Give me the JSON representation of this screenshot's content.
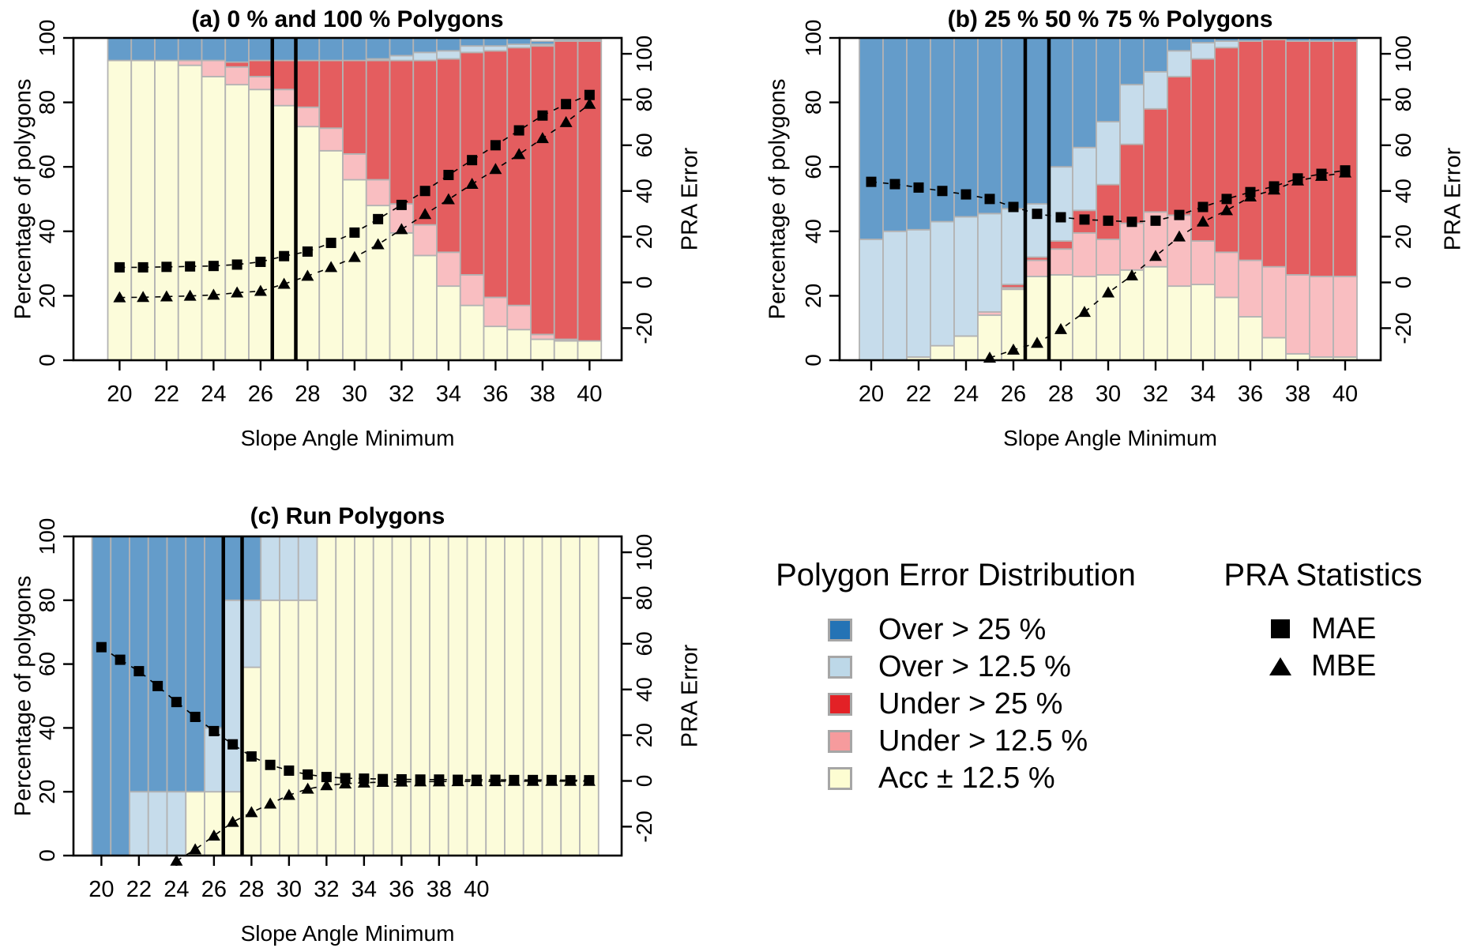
{
  "page": {
    "background": "#ffffff"
  },
  "colors": {
    "bar_fill": {
      "acc": "#FCFCDA",
      "under12_5": "#F9BEC1",
      "under25": "#E45D5F",
      "over12_5": "#C6DCEB",
      "over25": "#649CCA"
    },
    "bar_border": "#B3B3B3",
    "axis": "#000000",
    "marker": "#000000",
    "vline": "#000000"
  },
  "chart_data": [
    {
      "id": "a",
      "type": "bar",
      "title": "(a) 0 % and 100 % Polygons",
      "xlabel": "Slope Angle Minimum",
      "ylabel_left": "Percentage of polygons",
      "ylabel_right": "PRA Error",
      "x": [
        20,
        21,
        22,
        23,
        24,
        25,
        26,
        27,
        28,
        29,
        30,
        31,
        32,
        33,
        34,
        35,
        36,
        37,
        38,
        39,
        40
      ],
      "x_ticks": [
        20,
        22,
        24,
        26,
        28,
        30,
        32,
        34,
        36,
        38,
        40
      ],
      "left_ticks": [
        0,
        20,
        40,
        60,
        80,
        100
      ],
      "right_ticks": [
        -20,
        0,
        20,
        40,
        60,
        80,
        100
      ],
      "ylim_left": [
        0,
        100
      ],
      "ylim_right": [
        -35,
        105
      ],
      "vlines": [
        26.5,
        27.5
      ],
      "series": [
        {
          "key": "acc",
          "name": "Acc ± 12.5 %",
          "values": [
            93,
            93,
            93,
            91.5,
            88,
            85.5,
            84,
            79,
            72.5,
            65,
            56,
            48,
            39.5,
            32.5,
            23,
            17,
            10.5,
            9.5,
            6.5,
            6,
            6
          ]
        },
        {
          "key": "under12_5",
          "name": "Under > 12.5 %",
          "values": [
            0,
            0,
            0,
            1.5,
            5,
            5.5,
            4,
            5,
            6,
            7,
            8,
            8,
            9,
            9.5,
            10.5,
            9.5,
            9,
            7.5,
            1.5,
            0.5,
            0
          ]
        },
        {
          "key": "under25",
          "name": "Under > 25 %",
          "values": [
            0,
            0,
            0,
            0,
            0,
            1.5,
            5,
            9,
            14.5,
            21,
            29,
            37,
            44.5,
            51,
            60,
            69,
            76.5,
            80,
            89.5,
            92.5,
            93
          ]
        },
        {
          "key": "over12_5",
          "name": "Over > 12.5 %",
          "values": [
            0,
            0,
            0,
            0,
            0,
            0,
            0,
            0,
            0,
            0,
            0,
            0.5,
            1.5,
            2.5,
            2.5,
            2,
            1.5,
            1,
            0.5,
            0,
            0
          ]
        },
        {
          "key": "over25",
          "name": "Over > 25 %",
          "values": [
            7,
            7,
            7,
            7,
            7,
            7.5,
            7,
            7,
            7,
            7,
            7,
            6.5,
            5.5,
            4.5,
            4,
            2.5,
            2.5,
            2,
            1,
            0.5,
            0.5
          ]
        }
      ],
      "points": [
        {
          "name": "MAE",
          "marker": "square",
          "axis": "right",
          "values": [
            6.6,
            6.6,
            6.8,
            7,
            7.2,
            7.8,
            9,
            11.5,
            13.5,
            17.3,
            21.8,
            27.7,
            33.9,
            40,
            47,
            53.5,
            60,
            66.5,
            73,
            78,
            82
          ]
        },
        {
          "name": "MBE",
          "marker": "triangle",
          "axis": "right",
          "values": [
            -6.6,
            -6.5,
            -6.2,
            -5.9,
            -5.5,
            -4.5,
            -3.8,
            -0.7,
            2.8,
            6.6,
            11,
            16.6,
            23.2,
            29.8,
            36.3,
            43,
            49.5,
            56,
            63,
            70,
            78
          ]
        }
      ]
    },
    {
      "id": "b",
      "type": "bar",
      "title": "(b) 25 % 50 % 75 % Polygons",
      "xlabel": "Slope Angle Minimum",
      "ylabel_left": "Percentage of polygons",
      "ylabel_right": "PRA Error",
      "x": [
        20,
        21,
        22,
        23,
        24,
        25,
        26,
        27,
        28,
        29,
        30,
        31,
        32,
        33,
        34,
        35,
        36,
        37,
        38,
        39,
        40
      ],
      "x_ticks": [
        20,
        22,
        24,
        26,
        28,
        30,
        32,
        34,
        36,
        38,
        40
      ],
      "left_ticks": [
        0,
        20,
        40,
        60,
        80,
        100
      ],
      "right_ticks": [
        -20,
        0,
        20,
        40,
        60,
        80,
        100
      ],
      "ylim_left": [
        0,
        100
      ],
      "ylim_right": [
        -35,
        105
      ],
      "vlines": [
        26.5,
        27.5
      ],
      "series": [
        {
          "key": "acc",
          "name": "Acc ± 12.5 %",
          "values": [
            0,
            0,
            1,
            4.5,
            7.5,
            14,
            22,
            26,
            26.5,
            26,
            26.5,
            28,
            29,
            23,
            23.5,
            19.5,
            13.5,
            7,
            2,
            1,
            1
          ]
        },
        {
          "key": "under12_5",
          "name": "Under > 12.5 %",
          "values": [
            0,
            0,
            0,
            0,
            0,
            1,
            0.5,
            5,
            8,
            13.5,
            11,
            14.5,
            17,
            22,
            13.5,
            14,
            17.5,
            22,
            24.5,
            25,
            25
          ]
        },
        {
          "key": "under25",
          "name": "Under > 25 %",
          "values": [
            0,
            0,
            0,
            0,
            0,
            0,
            1,
            1,
            2.5,
            7,
            17,
            24.5,
            32,
            43,
            56.5,
            63.5,
            68,
            70.5,
            72.5,
            73,
            73
          ]
        },
        {
          "key": "over12_5",
          "name": "Over > 12.5 %",
          "values": [
            37.5,
            40,
            39.5,
            38.5,
            37,
            30.5,
            23.5,
            16.5,
            23,
            19.5,
            19.5,
            18.5,
            11.5,
            8,
            5,
            2,
            0,
            0,
            0,
            0,
            0
          ]
        },
        {
          "key": "over25",
          "name": "Over > 25 %",
          "values": [
            62.5,
            60,
            59.5,
            57,
            55.5,
            54.5,
            53,
            51.5,
            40,
            34,
            26,
            14.5,
            10.5,
            4,
            1.5,
            1,
            1,
            0.5,
            1,
            1,
            1
          ]
        }
      ],
      "points": [
        {
          "name": "MAE",
          "marker": "square",
          "axis": "right",
          "values": [
            44,
            43,
            41.5,
            40,
            38.5,
            36.5,
            33,
            30,
            28.5,
            27.5,
            27,
            26.5,
            27,
            29.5,
            33,
            36.5,
            39.5,
            42,
            45.5,
            47.5,
            49
          ]
        },
        {
          "name": "MBE",
          "marker": "triangle",
          "axis": "right",
          "values": [
            null,
            null,
            null,
            null,
            null,
            -33,
            -29.5,
            -26.5,
            -20.5,
            -13,
            -4.5,
            3,
            11.5,
            20,
            26.5,
            31.5,
            37.5,
            40.5,
            44.5,
            46.5,
            48
          ]
        }
      ]
    },
    {
      "id": "c",
      "type": "bar",
      "title": "(c) Run Polygons",
      "xlabel": "Slope Angle Minimum",
      "ylabel_left": "Percentage of polygons",
      "ylabel_right": "PRA Error",
      "x": [
        20,
        21,
        22,
        23,
        24,
        25,
        26,
        27,
        28,
        29,
        30,
        31,
        32,
        33,
        34,
        35,
        36,
        37,
        38,
        39,
        40,
        41,
        42,
        43,
        44,
        45,
        46
      ],
      "x_ticks": [
        20,
        22,
        24,
        26,
        28,
        30,
        32,
        34,
        36,
        38,
        40
      ],
      "left_ticks": [
        0,
        20,
        40,
        60,
        80,
        100
      ],
      "right_ticks": [
        -20,
        0,
        20,
        40,
        60,
        80,
        100
      ],
      "ylim_left": [
        0,
        100
      ],
      "ylim_right": [
        -35,
        105
      ],
      "vlines": [
        26.5,
        27.5
      ],
      "series": [
        {
          "key": "acc",
          "name": "Acc ± 12.5 %",
          "values": [
            0,
            0,
            0,
            0,
            0,
            20,
            20,
            20,
            59,
            80,
            80,
            80,
            100,
            100,
            100,
            100,
            100,
            100,
            100,
            100,
            100,
            100,
            100,
            100,
            100,
            100,
            100
          ]
        },
        {
          "key": "under12_5",
          "name": "Under > 12.5 %",
          "values": [
            0,
            0,
            0,
            0,
            0,
            0,
            0,
            0,
            0,
            0,
            0,
            0,
            0,
            0,
            0,
            0,
            0,
            0,
            0,
            0,
            0,
            0,
            0,
            0,
            0,
            0,
            0
          ]
        },
        {
          "key": "under25",
          "name": "Under > 25 %",
          "values": [
            0,
            0,
            0,
            0,
            0,
            0,
            0,
            0,
            0,
            0,
            0,
            0,
            0,
            0,
            0,
            0,
            0,
            0,
            0,
            0,
            0,
            0,
            0,
            0,
            0,
            0,
            0
          ]
        },
        {
          "key": "over12_5",
          "name": "Over > 12.5 %",
          "values": [
            0,
            0,
            20,
            20,
            20,
            0,
            20,
            60,
            21,
            20,
            20,
            20,
            0,
            0,
            0,
            0,
            0,
            0,
            0,
            0,
            0,
            0,
            0,
            0,
            0,
            0,
            0
          ]
        },
        {
          "key": "over25",
          "name": "Over > 25 %",
          "values": [
            100,
            100,
            80,
            80,
            80,
            80,
            60,
            20,
            20,
            0,
            0,
            0,
            0,
            0,
            0,
            0,
            0,
            0,
            0,
            0,
            0,
            0,
            0,
            0,
            0,
            0,
            0
          ]
        }
      ],
      "points": [
        {
          "name": "MAE",
          "marker": "square",
          "axis": "right",
          "values": [
            58.5,
            53,
            48,
            41.5,
            34.5,
            28,
            21.8,
            16,
            10.7,
            7,
            4.5,
            2.8,
            1.7,
            1.2,
            1,
            0.8,
            0.7,
            0.6,
            0.6,
            0.5,
            0.5,
            0.5,
            0.4,
            0.4,
            0.4,
            0.3,
            0.3
          ]
        },
        {
          "name": "MBE",
          "marker": "triangle",
          "axis": "right",
          "values": [
            null,
            null,
            null,
            null,
            -35,
            -30,
            -24,
            -18,
            -13.8,
            -10,
            -6.2,
            -3.5,
            -2,
            -1.2,
            -0.8,
            -0.5,
            -0.4,
            -0.3,
            -0.3,
            -0.2,
            -0.2,
            -0.2,
            -0.1,
            -0.1,
            -0.1,
            -0.1,
            -0.1
          ]
        }
      ]
    }
  ],
  "legend": {
    "error_distribution": {
      "title": "Polygon Error Distribution",
      "items": [
        {
          "label": "Over > 25 %",
          "color": "#2473B5",
          "key": "over25"
        },
        {
          "label": "Over > 12.5 %",
          "color": "#BDD8E8",
          "key": "over12_5"
        },
        {
          "label": "Under > 25 %",
          "color": "#E32126",
          "key": "under25"
        },
        {
          "label": "Under > 12.5 %",
          "color": "#F69B9D",
          "key": "under12_5"
        },
        {
          "label": "Acc ± 12.5 %",
          "color": "#FDFDD2",
          "key": "acc"
        }
      ]
    },
    "pra_statistics": {
      "title": "PRA Statistics",
      "items": [
        {
          "label": "MAE",
          "marker": "square"
        },
        {
          "label": "MBE",
          "marker": "triangle"
        }
      ]
    }
  }
}
